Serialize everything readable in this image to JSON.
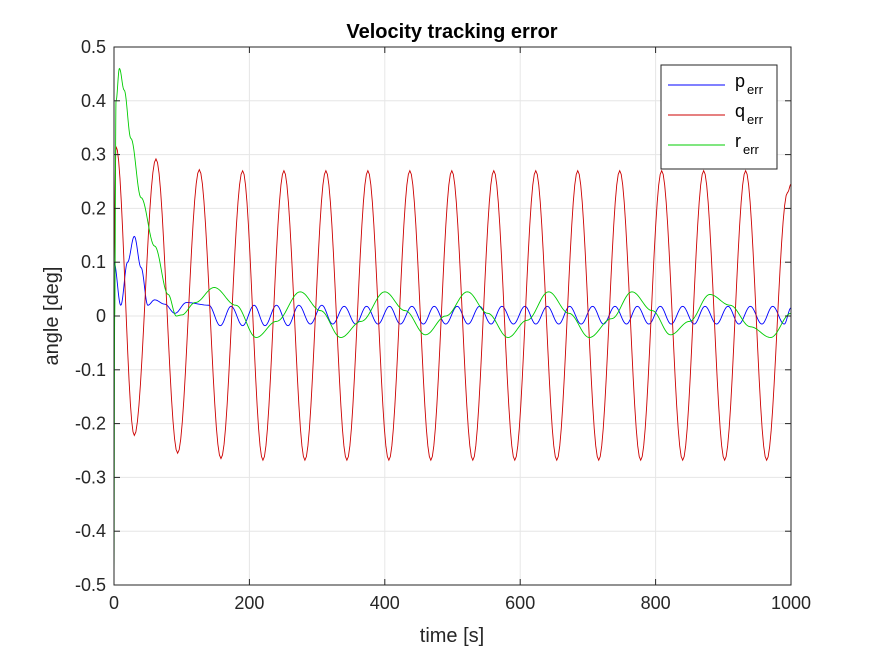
{
  "chart_data": {
    "type": "line",
    "title": "Velocity tracking error",
    "xlabel": "time [s]",
    "ylabel": "angle [deg]",
    "xlim": [
      0,
      1000
    ],
    "ylim": [
      -0.5,
      0.5
    ],
    "xticks": [
      0,
      200,
      400,
      600,
      800,
      1000
    ],
    "xtick_labels": [
      "0",
      "200",
      "400",
      "600",
      "800",
      "1000"
    ],
    "yticks": [
      -0.5,
      -0.4,
      -0.3,
      -0.2,
      -0.1,
      0,
      0.1,
      0.2,
      0.3,
      0.4,
      0.5
    ],
    "ytick_labels": [
      "-0.5",
      "-0.4",
      "-0.3",
      "-0.2",
      "-0.1",
      "0",
      "0.1",
      "0.2",
      "0.3",
      "0.4",
      "0.5"
    ],
    "grid": true,
    "legend_position": "top-right",
    "series": [
      {
        "name": "p",
        "subscript": "err",
        "color": "#0000ff",
        "x": [
          0,
          10,
          20,
          30,
          40,
          50,
          60,
          75,
          90,
          107,
          140,
          157,
          173,
          190,
          207,
          223,
          240,
          257,
          273,
          290,
          307,
          323,
          340,
          357,
          373,
          390,
          407,
          423,
          440,
          457,
          473,
          490,
          507,
          523,
          540,
          557,
          573,
          590,
          607,
          623,
          640,
          657,
          673,
          690,
          707,
          723,
          740,
          757,
          773,
          790,
          807,
          823,
          840,
          857,
          873,
          890,
          907,
          923,
          940,
          957,
          973,
          990,
          1000
        ],
        "y": [
          0.1,
          0.02,
          0.1,
          0.148,
          0.09,
          0.02,
          0.03,
          0.022,
          0.005,
          0.025,
          0.02,
          -0.018,
          0.018,
          -0.018,
          0.02,
          -0.018,
          0.02,
          -0.018,
          0.02,
          -0.015,
          0.02,
          -0.015,
          0.018,
          -0.015,
          0.018,
          -0.015,
          0.018,
          -0.015,
          0.018,
          -0.015,
          0.018,
          -0.015,
          0.018,
          -0.015,
          0.018,
          -0.015,
          0.018,
          -0.015,
          0.018,
          -0.015,
          0.018,
          -0.015,
          0.018,
          -0.015,
          0.018,
          -0.015,
          0.018,
          -0.015,
          0.018,
          -0.015,
          0.018,
          -0.015,
          0.018,
          -0.015,
          0.018,
          -0.015,
          0.018,
          -0.015,
          0.018,
          -0.015,
          0.018,
          -0.015,
          0.015
        ]
      },
      {
        "name": "q",
        "subscript": "err",
        "color": "#cc0000",
        "x": [
          0,
          3,
          30,
          62,
          94,
          126,
          158,
          190,
          220,
          251,
          282,
          313,
          344,
          375,
          406,
          437,
          468,
          499,
          530,
          561,
          592,
          623,
          654,
          685,
          716,
          747,
          778,
          809,
          840,
          871,
          902,
          933,
          964,
          995,
          1000
        ],
        "y": [
          0.1,
          0.315,
          -0.222,
          0.292,
          -0.255,
          0.272,
          -0.265,
          0.27,
          -0.268,
          0.27,
          -0.268,
          0.27,
          -0.268,
          0.27,
          -0.268,
          0.27,
          -0.268,
          0.27,
          -0.268,
          0.27,
          -0.268,
          0.27,
          -0.268,
          0.27,
          -0.268,
          0.27,
          -0.268,
          0.27,
          -0.268,
          0.27,
          -0.268,
          0.27,
          -0.268,
          0.23,
          0.245
        ]
      },
      {
        "name": "r",
        "subscript": "err",
        "color": "#00cc00",
        "x": [
          0,
          1,
          3,
          8,
          15,
          25,
          40,
          60,
          80,
          92,
          100,
          120,
          148,
          180,
          210,
          240,
          275,
          305,
          335,
          365,
          400,
          430,
          460,
          490,
          522,
          552,
          582,
          610,
          642,
          672,
          702,
          735,
          765,
          795,
          822,
          850,
          880,
          910,
          940,
          970,
          1000
        ],
        "y": [
          -0.48,
          0.0,
          0.4,
          0.46,
          0.42,
          0.33,
          0.22,
          0.13,
          0.04,
          0.0,
          0.002,
          0.025,
          0.053,
          0.02,
          -0.04,
          -0.01,
          0.045,
          0.01,
          -0.04,
          -0.01,
          0.045,
          0.01,
          -0.035,
          0.0,
          0.045,
          0.005,
          -0.04,
          -0.008,
          0.045,
          0.005,
          -0.04,
          -0.005,
          0.045,
          0.01,
          -0.035,
          -0.01,
          0.04,
          0.02,
          -0.02,
          -0.04,
          0.005
        ]
      }
    ]
  }
}
